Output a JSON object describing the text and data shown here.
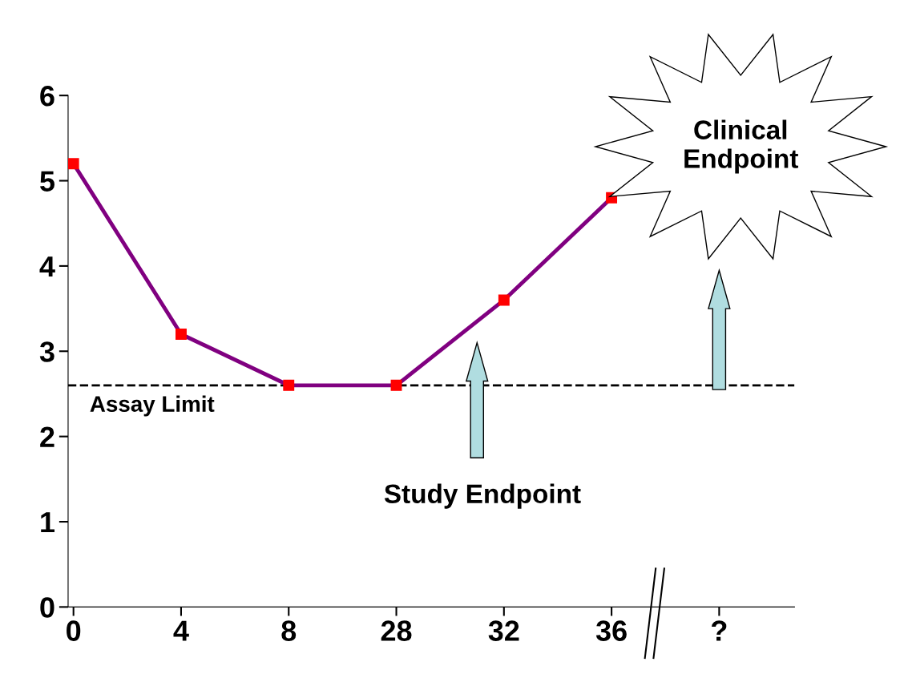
{
  "chart_data": {
    "type": "line",
    "categories": [
      "0",
      "4",
      "8",
      "28",
      "32",
      "36",
      "?"
    ],
    "series": [
      {
        "color": "#800080",
        "colors": [
          "#ff0000",
          "#ff0000",
          "#ff0000",
          "#ff0000",
          "#ff0000",
          "#ff0000",
          "#ff0000"
        ],
        "values": [
          5.2,
          3.2,
          2.6,
          2.6,
          3.6,
          4.8,
          null
        ]
      }
    ],
    "ylim": [
      0,
      6
    ],
    "yticks": [
      0,
      1,
      2,
      3,
      4,
      5,
      6
    ],
    "ref_lines": [
      {
        "axis": "y",
        "value": 2.6,
        "label": "Assay Limit",
        "color": "#000000",
        "line_style": "dashed"
      }
    ],
    "annotations": [
      "Study Endpoint",
      "Clinical Endpoint"
    ],
    "marker": "square",
    "line_style": "solid",
    "grid": false,
    "legend": false
  }
}
